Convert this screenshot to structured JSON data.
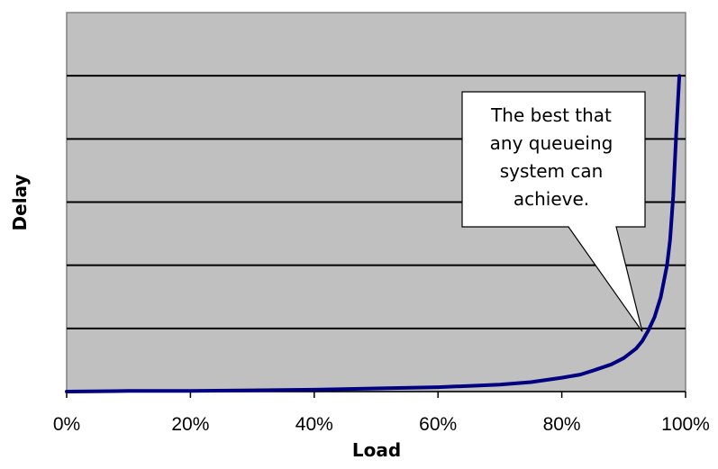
{
  "chart_data": {
    "type": "line",
    "xlabel": "Load",
    "ylabel": "Delay",
    "x_tick_labels": [
      "0%",
      "20%",
      "40%",
      "60%",
      "80%",
      "100%"
    ],
    "xlim": [
      0,
      100
    ],
    "ylim": [
      0,
      6
    ],
    "y_gridlines": [
      1,
      2,
      3,
      4,
      5
    ],
    "grid": true,
    "legend": "none",
    "plot_background": "#c0c0c0",
    "line_color": "#000080",
    "series": [
      {
        "x": [
          0,
          10,
          20,
          30,
          40,
          50,
          60,
          65,
          70,
          75,
          80,
          83,
          85,
          88,
          90,
          92,
          93,
          94,
          95,
          96,
          97,
          97.5,
          98,
          98.5,
          99
        ],
        "values": [
          0.0,
          0.01,
          0.01,
          0.02,
          0.03,
          0.05,
          0.07,
          0.09,
          0.11,
          0.15,
          0.22,
          0.27,
          0.33,
          0.43,
          0.53,
          0.68,
          0.8,
          0.97,
          1.18,
          1.5,
          2.0,
          2.4,
          3.1,
          4.1,
          5.0
        ]
      }
    ],
    "annotation": {
      "lines": [
        "The best that",
        "any queueing",
        "system can",
        "achieve."
      ],
      "points_to": {
        "x": 93,
        "y": 0.95
      }
    }
  }
}
